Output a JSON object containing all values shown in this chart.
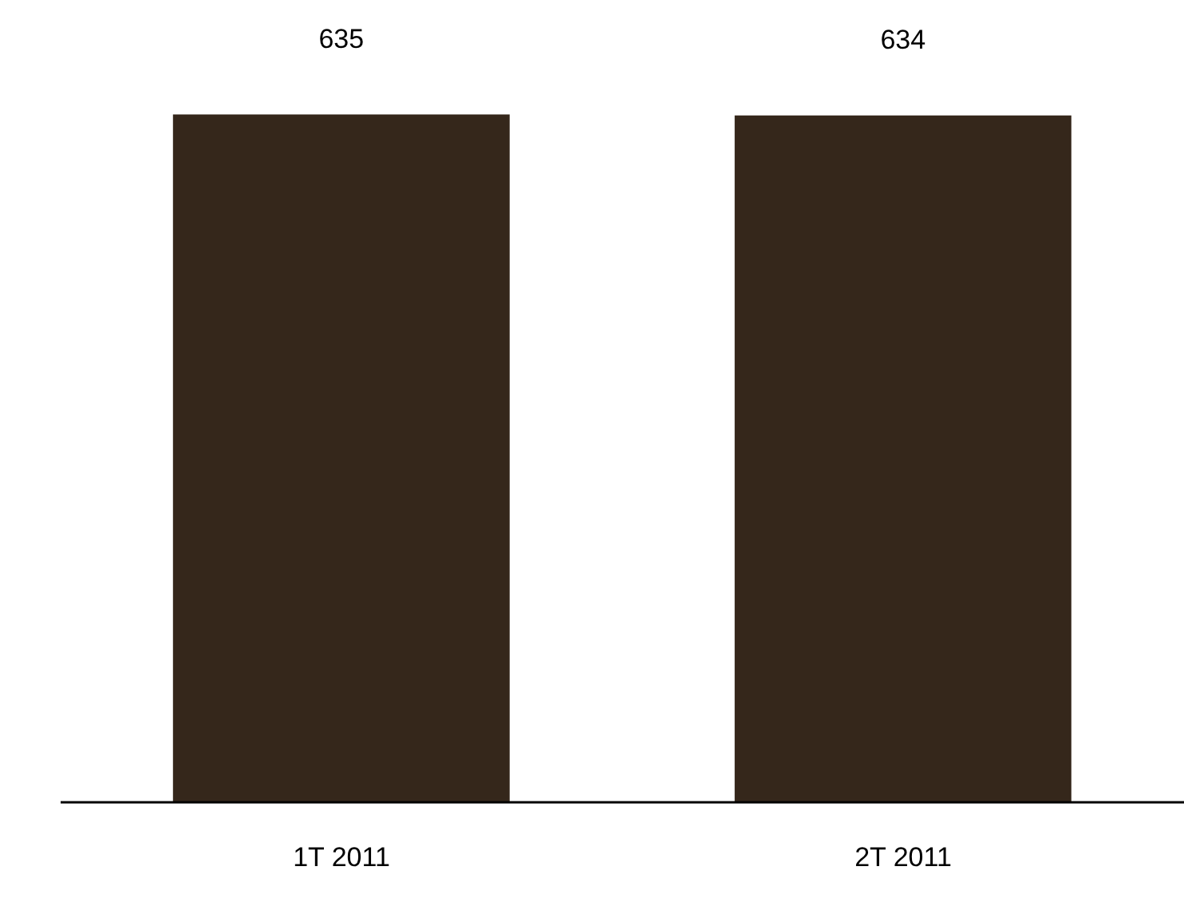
{
  "chart_data": {
    "type": "bar",
    "categories": [
      "1T 2011",
      "2T 2011"
    ],
    "values": [
      635,
      634
    ],
    "color": "#35271b",
    "data_labels": true,
    "grid": false,
    "legend": false
  }
}
